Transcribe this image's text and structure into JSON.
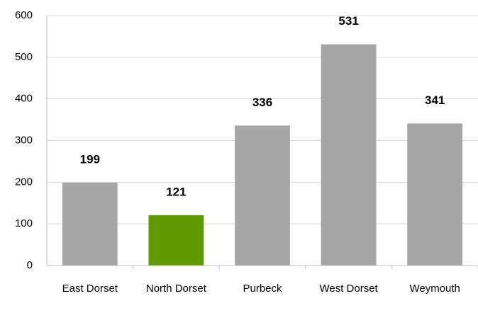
{
  "chart_data": {
    "type": "bar",
    "categories": [
      "East Dorset",
      "North Dorset",
      "Purbeck",
      "West Dorset",
      "Weymouth"
    ],
    "values": [
      199,
      121,
      336,
      531,
      341
    ],
    "colors": [
      "#a6a6a6",
      "#5f9a00",
      "#a6a6a6",
      "#a6a6a6",
      "#a6a6a6"
    ],
    "ylim": [
      0,
      600
    ],
    "yticks": [
      0,
      100,
      200,
      300,
      400,
      500,
      600
    ],
    "grid": true
  }
}
